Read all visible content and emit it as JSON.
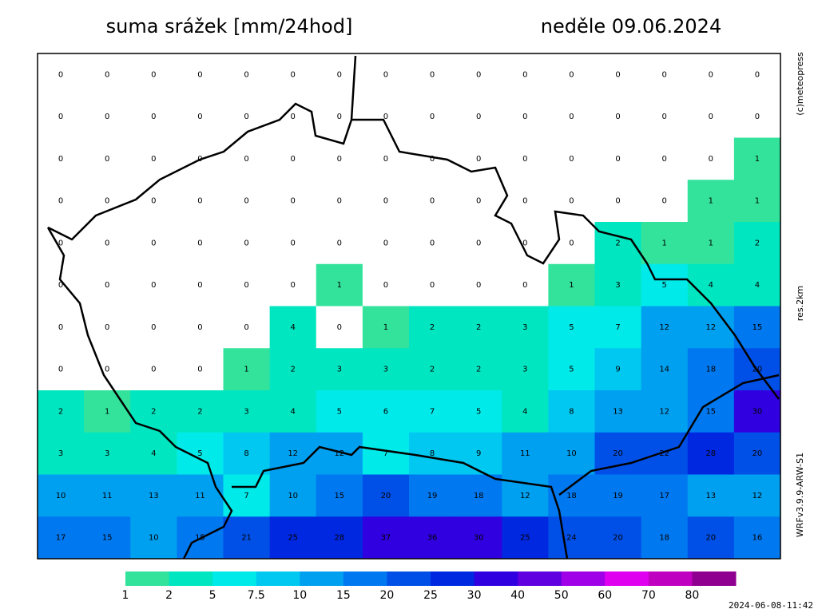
{
  "header": {
    "title": "suma srážek [mm/24hod]",
    "date": "neděle 09.06.2024"
  },
  "side_labels": {
    "copyright": "(c)meteopress",
    "resolution": "res.2km",
    "model": "WRFv3.9.9-ARW-S1"
  },
  "field": {
    "rows": [
      [
        0,
        0,
        0,
        0,
        0,
        0,
        0,
        0,
        0,
        0,
        0,
        0,
        0,
        0,
        0,
        0
      ],
      [
        0,
        0,
        0,
        0,
        0,
        0,
        0,
        0,
        0,
        0,
        0,
        0,
        0,
        0,
        0,
        0
      ],
      [
        0,
        0,
        0,
        0,
        0,
        0,
        0,
        0,
        0,
        0,
        0,
        0,
        0,
        0,
        0,
        1
      ],
      [
        0,
        0,
        0,
        0,
        0,
        0,
        0,
        0,
        0,
        0,
        0,
        0,
        0,
        0,
        1,
        1
      ],
      [
        0,
        0,
        0,
        0,
        0,
        0,
        0,
        0,
        0,
        0,
        0,
        0,
        2,
        1,
        1,
        2
      ],
      [
        0,
        0,
        0,
        0,
        0,
        0,
        1,
        0,
        0,
        0,
        0,
        1,
        3,
        5,
        4,
        4
      ],
      [
        0,
        0,
        0,
        0,
        0,
        4,
        0,
        1,
        2,
        2,
        3,
        5,
        7,
        12,
        12,
        15
      ],
      [
        0,
        0,
        0,
        0,
        1,
        2,
        3,
        3,
        2,
        2,
        3,
        5,
        9,
        14,
        18,
        20
      ],
      [
        2,
        1,
        2,
        2,
        3,
        4,
        5,
        6,
        7,
        5,
        4,
        8,
        13,
        12,
        15,
        30
      ],
      [
        3,
        3,
        4,
        5,
        8,
        12,
        12,
        7,
        8,
        9,
        11,
        10,
        20,
        22,
        28,
        20
      ],
      [
        10,
        11,
        13,
        11,
        7,
        10,
        15,
        20,
        19,
        18,
        12,
        18,
        19,
        17,
        13,
        12
      ],
      [
        17,
        15,
        10,
        15,
        21,
        25,
        28,
        37,
        36,
        30,
        25,
        24,
        20,
        18,
        20,
        16
      ]
    ]
  },
  "legend": {
    "levels": [
      1,
      2,
      5,
      7.5,
      10,
      15,
      20,
      25,
      30,
      40,
      50,
      60,
      70,
      80
    ],
    "colors": [
      "#33e39c",
      "#00e6c0",
      "#00eaea",
      "#00c8f0",
      "#00a0f0",
      "#0078f0",
      "#0050e8",
      "#0028e0",
      "#3000e0",
      "#6000e0",
      "#a000e8",
      "#e000f0",
      "#c000c0",
      "#900090"
    ]
  },
  "timestamp": "2024-06-08-11:42"
}
